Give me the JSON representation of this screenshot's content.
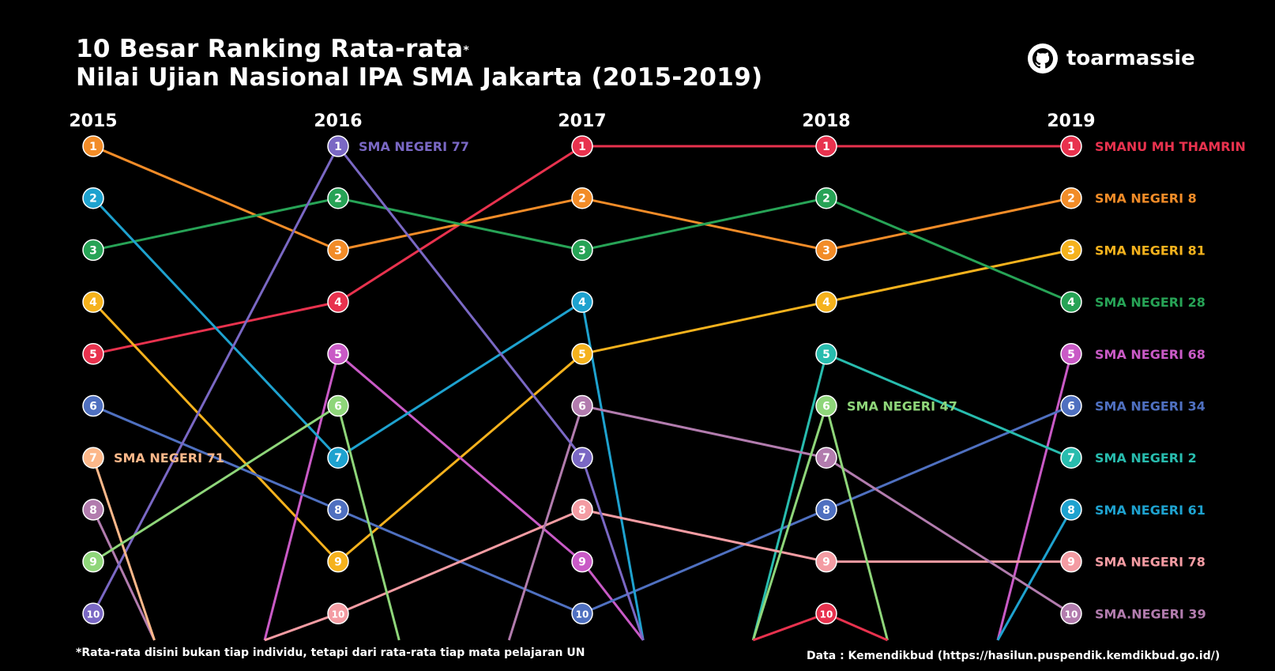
{
  "title": {
    "line1": "10 Besar Ranking Rata-rata",
    "marker": "*",
    "line2": "Nilai Ujian Nasional IPA SMA Jakarta (2015-2019)"
  },
  "brand": {
    "name": "toarmassie",
    "icon": "github-icon"
  },
  "footnote": "*Rata-rata disini bukan tiap individu, tetapi dari rata-rata tiap mata pelajaran UN",
  "source": "Data : Kemendikbud (https://hasilun.puspendik.kemdikbud.go.id/)",
  "chart_data": {
    "type": "line",
    "subtype": "bump",
    "years": [
      "2015",
      "2016",
      "2017",
      "2018",
      "2019"
    ],
    "y_reversed": true,
    "rank_range": [
      1,
      10
    ],
    "rank_labels": [
      "1",
      "2",
      "3",
      "4",
      "5",
      "6",
      "7",
      "8",
      "9",
      "10"
    ],
    "series": [
      {
        "name": "SMANU MH THAMRIN",
        "color": "#e8324e",
        "ranks": [
          5,
          4,
          1,
          1,
          1
        ]
      },
      {
        "name": "SMA NEGERI 8",
        "color": "#f28c28",
        "ranks": [
          1,
          3,
          2,
          3,
          2
        ]
      },
      {
        "name": "SMA NEGERI 81",
        "color": "#f5b21d",
        "ranks": [
          4,
          9,
          5,
          4,
          3
        ]
      },
      {
        "name": "SMA NEGERI 28",
        "color": "#27a356",
        "ranks": [
          3,
          2,
          3,
          2,
          4
        ]
      },
      {
        "name": "SMA NEGERI 68",
        "color": "#c95ac6",
        "ranks": [
          null,
          5,
          9,
          null,
          5
        ]
      },
      {
        "name": "SMA NEGERI 34",
        "color": "#4f70c0",
        "ranks": [
          6,
          8,
          10,
          8,
          6
        ]
      },
      {
        "name": "SMA NEGERI 2",
        "color": "#28bcae",
        "ranks": [
          null,
          null,
          null,
          5,
          7
        ]
      },
      {
        "name": "SMA NEGERI 61",
        "color": "#1ea2cf",
        "ranks": [
          2,
          7,
          4,
          null,
          8
        ]
      },
      {
        "name": "SMA NEGERI 78",
        "color": "#f49ca3",
        "ranks": [
          null,
          10,
          8,
          9,
          9
        ]
      },
      {
        "name": "SMA.NEGERI 39",
        "color": "#b27cae",
        "ranks": [
          8,
          null,
          6,
          7,
          10
        ]
      },
      {
        "name": "SMA NEGERI 77",
        "color": "#7a68c4",
        "ranks": [
          10,
          1,
          7,
          null,
          null
        ]
      },
      {
        "name": "SMA NEGERI 71",
        "color": "#fdb88a",
        "ranks": [
          7,
          null,
          null,
          null,
          null
        ]
      },
      {
        "name": "SMA NEGERI 47",
        "color": "#8fd67a",
        "ranks": [
          9,
          6,
          null,
          6,
          null
        ]
      },
      {
        "name": "",
        "color": "#e8324e",
        "ranks": [
          null,
          null,
          null,
          10,
          null
        ]
      }
    ],
    "annotations": [
      {
        "text": "SMA NEGERI 77",
        "series": 10,
        "year_index": 1
      },
      {
        "text": "SMA NEGERI 71",
        "series": 11,
        "year_index": 0
      },
      {
        "text": "SMA NEGERI 47",
        "series": 12,
        "year_index": 3
      }
    ]
  }
}
